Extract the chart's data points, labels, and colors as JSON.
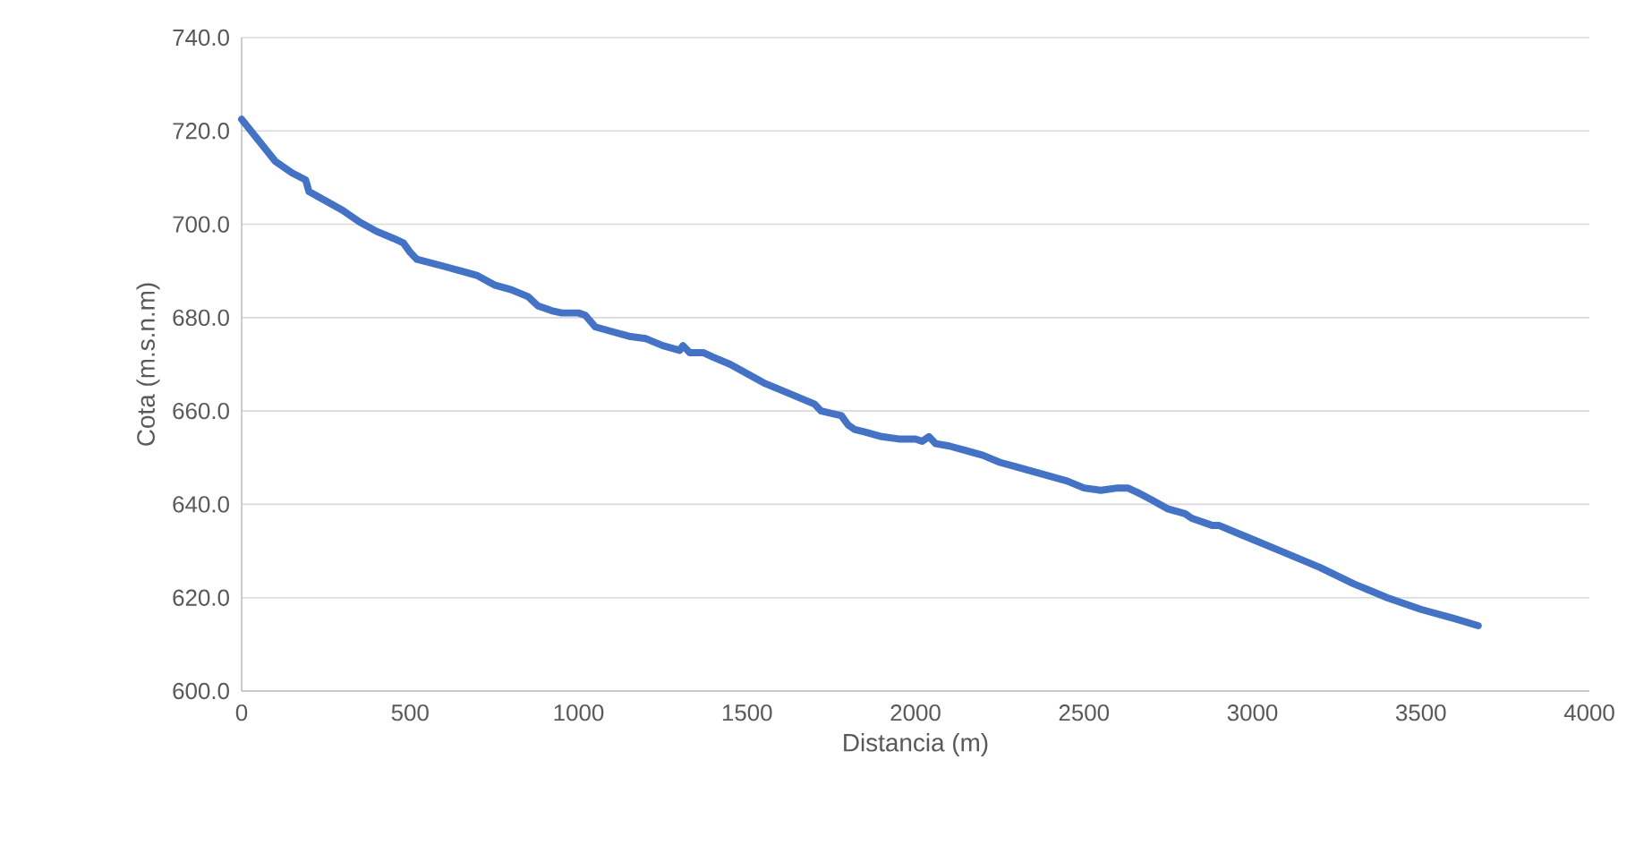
{
  "chart_data": {
    "type": "line",
    "xlabel": "Distancia (m)",
    "ylabel": "Cota (m.s.n.m)",
    "color": "#4472c4",
    "grid": "y",
    "xlim": [
      0,
      4000
    ],
    "xticks": [
      0,
      500,
      1000,
      1500,
      2000,
      2500,
      3000,
      3500,
      4000
    ],
    "ylim": [
      600,
      740
    ],
    "yticks": [
      {
        "value": 600,
        "label": "600.0"
      },
      {
        "value": 620,
        "label": "620.0"
      },
      {
        "value": 640,
        "label": "640.0"
      },
      {
        "value": 660,
        "label": "660.0"
      },
      {
        "value": 680,
        "label": "680.0"
      },
      {
        "value": 700,
        "label": "700.0"
      },
      {
        "value": 720,
        "label": "720.0"
      },
      {
        "value": 740,
        "label": "740.0"
      }
    ],
    "x": [
      0,
      50,
      100,
      150,
      190,
      200,
      250,
      300,
      350,
      400,
      450,
      480,
      500,
      520,
      600,
      650,
      700,
      750,
      800,
      850,
      880,
      920,
      950,
      1000,
      1020,
      1050,
      1100,
      1150,
      1200,
      1250,
      1300,
      1310,
      1330,
      1370,
      1400,
      1450,
      1500,
      1550,
      1600,
      1650,
      1700,
      1720,
      1780,
      1800,
      1820,
      1850,
      1900,
      1950,
      2000,
      2020,
      2040,
      2060,
      2100,
      2150,
      2200,
      2250,
      2300,
      2350,
      2400,
      2450,
      2500,
      2550,
      2600,
      2630,
      2660,
      2700,
      2750,
      2800,
      2820,
      2880,
      2900,
      2950,
      3000,
      3100,
      3200,
      3300,
      3400,
      3500,
      3600,
      3670
    ],
    "values": [
      722.5,
      718,
      713.5,
      711,
      709.5,
      707,
      705,
      703,
      700.5,
      698.5,
      697,
      696,
      694,
      692.5,
      691,
      690,
      689,
      687,
      686,
      684.5,
      682.5,
      681.5,
      681,
      681,
      680.5,
      678,
      677,
      676,
      675.5,
      674,
      673,
      674,
      672.5,
      672.5,
      671.5,
      670,
      668,
      666,
      664.5,
      663,
      661.5,
      660,
      659,
      657,
      656,
      655.5,
      654.5,
      654,
      654,
      653.5,
      654.5,
      653,
      652.5,
      651.5,
      650.5,
      649,
      648,
      647,
      646,
      645,
      643.5,
      643,
      643.5,
      643.5,
      642.5,
      641,
      639,
      638,
      637,
      635.5,
      635.5,
      634,
      632.5,
      629.5,
      626.5,
      623,
      620,
      617.5,
      615.5,
      614
    ]
  }
}
